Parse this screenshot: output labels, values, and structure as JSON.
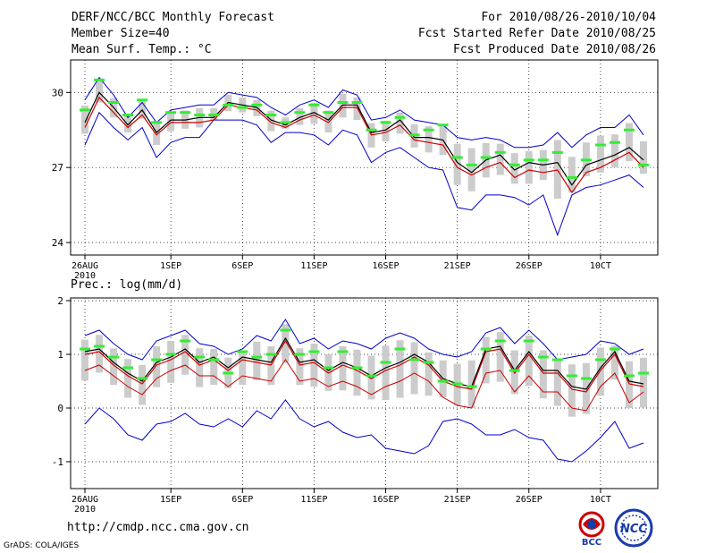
{
  "header": {
    "line1_left": "DERF/NCC/BCC Monthly Forecast",
    "line2_left": "Member Size=40",
    "line3_left": "Mean Surf. Temp.: °C",
    "line1_right": "For 2010/08/26-2010/10/04",
    "line2_right": "Fcst Started Refer Date 2010/08/25",
    "line3_right": "Fcst Produced Date 2010/08/26"
  },
  "precip_label": "Prec.: log(mm/d)",
  "footer": {
    "url": "http://cmdp.ncc.cma.gov.cn",
    "grads": "GrADS: COLA/IGES",
    "logo_bcc": "BCC",
    "logo_ncc": "NCC"
  },
  "colors": {
    "envelope": "#0000cc",
    "mean": "#000000",
    "median": "#cc0000",
    "observed": "#33ee33",
    "box": "#cccccc"
  },
  "chart_data": [
    {
      "type": "line",
      "title": "Mean Surf. Temp.: °C",
      "xlabel": "",
      "ylabel": "°C",
      "x_ticks": [
        {
          "day": 0,
          "label": "26AUG"
        },
        {
          "day": 6,
          "label": "1SEP"
        },
        {
          "day": 11,
          "label": "6SEP"
        },
        {
          "day": 16,
          "label": "11SEP"
        },
        {
          "day": 21,
          "label": "16SEP"
        },
        {
          "day": 26,
          "label": "21SEP"
        },
        {
          "day": 31,
          "label": "26SEP"
        },
        {
          "day": 36,
          "label": "10CT"
        }
      ],
      "x_sublabel": "2010",
      "xlim": [
        -1,
        40
      ],
      "ylim": [
        23.5,
        31.3
      ],
      "yticks": [
        24,
        27,
        30
      ],
      "grid": true,
      "days": [
        0,
        1,
        2,
        3,
        4,
        5,
        6,
        7,
        8,
        9,
        10,
        11,
        12,
        13,
        14,
        15,
        16,
        17,
        18,
        19,
        20,
        21,
        22,
        23,
        24,
        25,
        26,
        27,
        28,
        29,
        30,
        31,
        32,
        33,
        34,
        35,
        36,
        37,
        38,
        39
      ],
      "series": [
        {
          "name": "max",
          "values": [
            29.7,
            30.6,
            29.9,
            29.0,
            29.6,
            28.8,
            29.3,
            29.4,
            29.5,
            29.5,
            30.0,
            29.9,
            29.8,
            29.4,
            29.1,
            29.5,
            29.7,
            29.4,
            30.1,
            29.9,
            28.9,
            29.0,
            29.3,
            28.9,
            28.8,
            28.7,
            28.2,
            28.1,
            28.2,
            28.1,
            27.8,
            27.8,
            27.9,
            28.4,
            27.8,
            28.3,
            28.6,
            28.6,
            29.1,
            28.3
          ]
        },
        {
          "name": "mean",
          "values": [
            28.8,
            30.0,
            29.4,
            28.7,
            29.3,
            28.4,
            28.9,
            28.9,
            29.0,
            29.0,
            29.6,
            29.5,
            29.4,
            28.9,
            28.7,
            29.0,
            29.2,
            28.9,
            29.5,
            29.5,
            28.4,
            28.5,
            28.9,
            28.2,
            28.2,
            28.1,
            27.2,
            26.8,
            27.3,
            27.5,
            26.9,
            27.2,
            27.1,
            27.2,
            26.3,
            27.1,
            27.3,
            27.5,
            27.8,
            27.3
          ]
        },
        {
          "name": "median",
          "values": [
            28.6,
            29.8,
            29.2,
            28.6,
            29.1,
            28.3,
            28.8,
            28.8,
            28.8,
            28.9,
            29.5,
            29.4,
            29.3,
            28.8,
            28.6,
            28.9,
            29.1,
            28.8,
            29.4,
            29.4,
            28.3,
            28.4,
            28.7,
            28.1,
            28.0,
            27.9,
            27.0,
            26.7,
            27.0,
            27.2,
            26.6,
            26.9,
            26.8,
            26.9,
            26.0,
            26.8,
            27.0,
            27.3,
            27.6,
            27.0
          ]
        },
        {
          "name": "min",
          "values": [
            27.9,
            29.2,
            28.6,
            28.1,
            28.6,
            27.4,
            28.0,
            28.2,
            28.2,
            28.9,
            28.9,
            28.9,
            28.7,
            28.0,
            28.4,
            28.4,
            28.3,
            27.9,
            28.5,
            28.3,
            27.2,
            27.6,
            27.8,
            27.4,
            27.0,
            26.9,
            25.4,
            25.3,
            25.9,
            25.9,
            25.8,
            25.5,
            25.9,
            24.3,
            25.9,
            26.2,
            26.3,
            26.5,
            26.7,
            26.2
          ]
        },
        {
          "name": "observed",
          "values": [
            29.3,
            30.5,
            29.6,
            29.1,
            29.7,
            28.8,
            29.2,
            29.2,
            29.1,
            29.1,
            29.5,
            29.4,
            29.5,
            29.1,
            28.8,
            29.2,
            29.5,
            29.2,
            29.6,
            29.6,
            28.5,
            28.8,
            29.0,
            28.3,
            28.5,
            28.7,
            27.4,
            27.1,
            27.4,
            27.6,
            27.1,
            27.3,
            27.3,
            27.6,
            26.6,
            27.3,
            27.9,
            28.0,
            28.5,
            27.1
          ]
        }
      ]
    },
    {
      "type": "line",
      "title": "Prec.: log(mm/d)",
      "xlabel": "",
      "ylabel": "log(mm/d)",
      "x_ticks": [
        {
          "day": 0,
          "label": "26AUG"
        },
        {
          "day": 6,
          "label": "1SEP"
        },
        {
          "day": 11,
          "label": "6SEP"
        },
        {
          "day": 16,
          "label": "11SEP"
        },
        {
          "day": 21,
          "label": "16SEP"
        },
        {
          "day": 26,
          "label": "21SEP"
        },
        {
          "day": 31,
          "label": "26SEP"
        },
        {
          "day": 36,
          "label": "10CT"
        }
      ],
      "x_sublabel": "2010",
      "xlim": [
        -1,
        40
      ],
      "ylim": [
        -1.5,
        2.05
      ],
      "yticks": [
        -1,
        0,
        1,
        2
      ],
      "grid": true,
      "days": [
        0,
        1,
        2,
        3,
        4,
        5,
        6,
        7,
        8,
        9,
        10,
        11,
        12,
        13,
        14,
        15,
        16,
        17,
        18,
        19,
        20,
        21,
        22,
        23,
        24,
        25,
        26,
        27,
        28,
        29,
        30,
        31,
        32,
        33,
        34,
        35,
        36,
        37,
        38,
        39
      ],
      "series": [
        {
          "name": "max",
          "values": [
            1.35,
            1.45,
            1.2,
            1.0,
            0.9,
            1.25,
            1.35,
            1.45,
            1.2,
            1.15,
            1.0,
            1.1,
            1.35,
            1.25,
            1.65,
            1.2,
            1.3,
            1.1,
            1.25,
            1.2,
            1.1,
            1.3,
            1.4,
            1.3,
            1.1,
            1.0,
            0.95,
            1.05,
            1.4,
            1.5,
            1.2,
            1.45,
            1.2,
            0.9,
            0.95,
            1.0,
            1.25,
            1.2,
            1.0,
            1.1
          ]
        },
        {
          "name": "mean",
          "values": [
            1.05,
            1.1,
            0.85,
            0.65,
            0.5,
            0.85,
            0.95,
            1.1,
            0.85,
            0.95,
            0.75,
            0.95,
            0.9,
            0.85,
            1.3,
            0.85,
            0.9,
            0.7,
            0.85,
            0.75,
            0.6,
            0.75,
            0.85,
            1.0,
            0.85,
            0.55,
            0.45,
            0.4,
            1.1,
            1.15,
            0.7,
            1.05,
            0.7,
            0.7,
            0.4,
            0.35,
            0.75,
            1.05,
            0.5,
            0.45
          ]
        },
        {
          "name": "median",
          "values": [
            1.0,
            1.05,
            0.8,
            0.6,
            0.45,
            0.8,
            0.9,
            1.05,
            0.8,
            0.9,
            0.7,
            0.9,
            0.85,
            0.8,
            1.25,
            0.8,
            0.85,
            0.65,
            0.8,
            0.7,
            0.55,
            0.7,
            0.8,
            0.95,
            0.8,
            0.5,
            0.4,
            0.35,
            1.05,
            1.1,
            0.65,
            1.0,
            0.65,
            0.65,
            0.35,
            0.3,
            0.7,
            1.0,
            0.45,
            0.4
          ]
        },
        {
          "name": "q10",
          "values": [
            0.7,
            0.8,
            0.6,
            0.4,
            0.25,
            0.55,
            0.7,
            0.8,
            0.6,
            0.6,
            0.4,
            0.6,
            0.55,
            0.5,
            0.9,
            0.5,
            0.55,
            0.4,
            0.5,
            0.4,
            0.25,
            0.4,
            0.5,
            0.65,
            0.5,
            0.2,
            0.05,
            0.0,
            0.65,
            0.7,
            0.3,
            0.6,
            0.3,
            0.3,
            0.0,
            -0.05,
            0.4,
            0.65,
            0.1,
            0.3
          ]
        },
        {
          "name": "min",
          "values": [
            -0.3,
            0.0,
            -0.2,
            -0.5,
            -0.6,
            -0.3,
            -0.25,
            -0.1,
            -0.3,
            -0.35,
            -0.2,
            -0.35,
            -0.05,
            -0.2,
            0.15,
            -0.2,
            -0.35,
            -0.25,
            -0.45,
            -0.55,
            -0.5,
            -0.75,
            -0.8,
            -0.85,
            -0.7,
            -0.25,
            -0.2,
            -0.3,
            -0.5,
            -0.5,
            -0.4,
            -0.55,
            -0.6,
            -0.95,
            -1.0,
            -0.8,
            -0.55,
            -0.25,
            -0.75,
            -0.65
          ]
        },
        {
          "name": "observed",
          "values": [
            1.1,
            1.15,
            0.95,
            0.75,
            0.55,
            0.9,
            1.0,
            1.25,
            0.95,
            0.9,
            0.65,
            1.05,
            0.95,
            1.0,
            1.45,
            1.0,
            1.05,
            0.75,
            1.05,
            0.75,
            0.6,
            0.85,
            1.1,
            0.9,
            0.85,
            0.5,
            0.45,
            0.4,
            1.1,
            1.25,
            0.7,
            1.25,
            0.95,
            0.9,
            0.6,
            0.55,
            0.9,
            1.1,
            0.6,
            0.65
          ]
        }
      ]
    }
  ]
}
